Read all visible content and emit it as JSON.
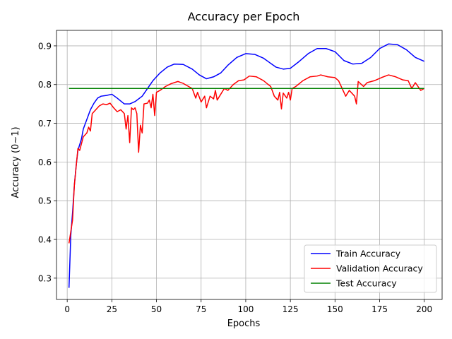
{
  "chart_data": {
    "type": "line",
    "title": "Accuracy per Epoch",
    "xlabel": "Epochs",
    "ylabel": "Accuracy (0~1)",
    "xlim": [
      -6,
      210
    ],
    "ylim": [
      0.245,
      0.94
    ],
    "xticks": [
      0,
      25,
      50,
      75,
      100,
      125,
      150,
      175,
      200
    ],
    "yticks": [
      0.3,
      0.4,
      0.5,
      0.6,
      0.7,
      0.8,
      0.9
    ],
    "grid": true,
    "legend_position": "bottom-right",
    "series": [
      {
        "name": "Train Accuracy",
        "color": "#0000ff",
        "points": [
          [
            1,
            0.275
          ],
          [
            2,
            0.41
          ],
          [
            3,
            0.47
          ],
          [
            4,
            0.54
          ],
          [
            5,
            0.59
          ],
          [
            6,
            0.63
          ],
          [
            8,
            0.66
          ],
          [
            9,
            0.685
          ],
          [
            11,
            0.71
          ],
          [
            13,
            0.735
          ],
          [
            15,
            0.752
          ],
          [
            17,
            0.765
          ],
          [
            19,
            0.77
          ],
          [
            22,
            0.772
          ],
          [
            25,
            0.775
          ],
          [
            28,
            0.765
          ],
          [
            32,
            0.75
          ],
          [
            35,
            0.75
          ],
          [
            38,
            0.756
          ],
          [
            42,
            0.77
          ],
          [
            45,
            0.79
          ],
          [
            48,
            0.81
          ],
          [
            52,
            0.83
          ],
          [
            56,
            0.845
          ],
          [
            60,
            0.853
          ],
          [
            65,
            0.852
          ],
          [
            70,
            0.84
          ],
          [
            74,
            0.825
          ],
          [
            78,
            0.815
          ],
          [
            82,
            0.82
          ],
          [
            86,
            0.83
          ],
          [
            90,
            0.85
          ],
          [
            95,
            0.87
          ],
          [
            100,
            0.88
          ],
          [
            105,
            0.878
          ],
          [
            110,
            0.868
          ],
          [
            113,
            0.858
          ],
          [
            117,
            0.845
          ],
          [
            121,
            0.84
          ],
          [
            125,
            0.842
          ],
          [
            130,
            0.86
          ],
          [
            135,
            0.88
          ],
          [
            140,
            0.893
          ],
          [
            145,
            0.893
          ],
          [
            150,
            0.885
          ],
          [
            155,
            0.862
          ],
          [
            160,
            0.853
          ],
          [
            165,
            0.855
          ],
          [
            170,
            0.87
          ],
          [
            175,
            0.893
          ],
          [
            180,
            0.905
          ],
          [
            185,
            0.903
          ],
          [
            190,
            0.89
          ],
          [
            195,
            0.87
          ],
          [
            200,
            0.86
          ]
        ]
      },
      {
        "name": "Validation Accuracy",
        "color": "#ff0000",
        "points": [
          [
            1,
            0.39
          ],
          [
            3,
            0.45
          ],
          [
            4,
            0.54
          ],
          [
            6,
            0.635
          ],
          [
            7,
            0.63
          ],
          [
            9,
            0.665
          ],
          [
            11,
            0.675
          ],
          [
            12,
            0.69
          ],
          [
            13,
            0.68
          ],
          [
            14,
            0.725
          ],
          [
            16,
            0.735
          ],
          [
            18,
            0.745
          ],
          [
            20,
            0.75
          ],
          [
            22,
            0.748
          ],
          [
            24,
            0.752
          ],
          [
            26,
            0.74
          ],
          [
            28,
            0.73
          ],
          [
            30,
            0.735
          ],
          [
            32,
            0.725
          ],
          [
            33,
            0.685
          ],
          [
            34,
            0.72
          ],
          [
            35,
            0.65
          ],
          [
            36,
            0.74
          ],
          [
            37,
            0.735
          ],
          [
            38,
            0.74
          ],
          [
            39,
            0.725
          ],
          [
            40,
            0.625
          ],
          [
            41,
            0.695
          ],
          [
            42,
            0.675
          ],
          [
            43,
            0.75
          ],
          [
            45,
            0.752
          ],
          [
            46,
            0.76
          ],
          [
            47,
            0.74
          ],
          [
            48,
            0.775
          ],
          [
            49,
            0.72
          ],
          [
            50,
            0.78
          ],
          [
            52,
            0.785
          ],
          [
            55,
            0.795
          ],
          [
            58,
            0.802
          ],
          [
            62,
            0.808
          ],
          [
            65,
            0.803
          ],
          [
            68,
            0.795
          ],
          [
            70,
            0.79
          ],
          [
            72,
            0.765
          ],
          [
            73,
            0.78
          ],
          [
            75,
            0.755
          ],
          [
            77,
            0.77
          ],
          [
            78,
            0.74
          ],
          [
            80,
            0.77
          ],
          [
            82,
            0.763
          ],
          [
            83,
            0.785
          ],
          [
            84,
            0.76
          ],
          [
            86,
            0.775
          ],
          [
            88,
            0.79
          ],
          [
            90,
            0.785
          ],
          [
            93,
            0.8
          ],
          [
            96,
            0.81
          ],
          [
            99,
            0.812
          ],
          [
            102,
            0.822
          ],
          [
            106,
            0.82
          ],
          [
            110,
            0.81
          ],
          [
            114,
            0.795
          ],
          [
            116,
            0.77
          ],
          [
            118,
            0.76
          ],
          [
            119,
            0.78
          ],
          [
            120,
            0.737
          ],
          [
            121,
            0.778
          ],
          [
            123,
            0.765
          ],
          [
            124,
            0.78
          ],
          [
            125,
            0.76
          ],
          [
            126,
            0.79
          ],
          [
            128,
            0.795
          ],
          [
            132,
            0.81
          ],
          [
            136,
            0.82
          ],
          [
            140,
            0.822
          ],
          [
            142,
            0.825
          ],
          [
            146,
            0.82
          ],
          [
            150,
            0.818
          ],
          [
            152,
            0.81
          ],
          [
            154,
            0.79
          ],
          [
            156,
            0.77
          ],
          [
            158,
            0.785
          ],
          [
            161,
            0.77
          ],
          [
            162,
            0.75
          ],
          [
            163,
            0.808
          ],
          [
            166,
            0.795
          ],
          [
            168,
            0.805
          ],
          [
            172,
            0.81
          ],
          [
            176,
            0.818
          ],
          [
            180,
            0.825
          ],
          [
            184,
            0.82
          ],
          [
            188,
            0.812
          ],
          [
            191,
            0.81
          ],
          [
            193,
            0.79
          ],
          [
            195,
            0.805
          ],
          [
            198,
            0.785
          ],
          [
            200,
            0.79
          ]
        ]
      },
      {
        "name": "Test Accuracy",
        "color": "#008000",
        "points": [
          [
            1,
            0.79
          ],
          [
            200,
            0.79
          ]
        ]
      }
    ]
  }
}
